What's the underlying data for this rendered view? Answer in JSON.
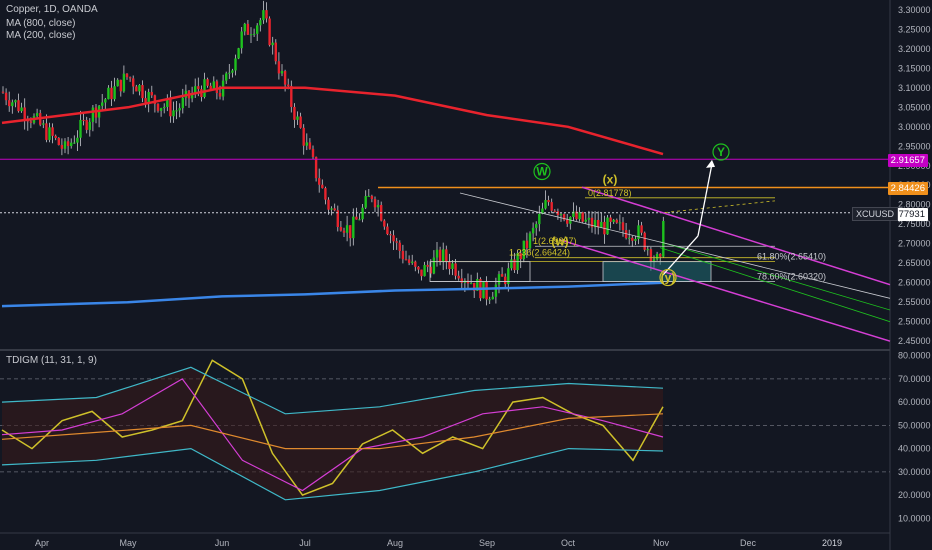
{
  "chart_data": [
    {
      "type": "candlestick",
      "title": "Copper, 1D, OANDA",
      "symbol": "XCUUSD",
      "last_price": "2.77931",
      "price_axis": {
        "ticks": [
          "3.30000",
          "3.25000",
          "3.20000",
          "3.15000",
          "3.10000",
          "3.05000",
          "3.00000",
          "2.95000",
          "2.90000",
          "2.85000",
          "2.80000",
          "2.75000",
          "2.70000",
          "2.65000",
          "2.60000",
          "2.55000",
          "2.50000",
          "2.45000"
        ],
        "ylim": [
          2.43,
          3.32
        ]
      },
      "time_axis": {
        "ticks": [
          "Apr",
          "May",
          "Jun",
          "Jul",
          "Aug",
          "Sep",
          "Oct",
          "Nov",
          "Dec",
          "2019"
        ]
      },
      "moving_averages": [
        {
          "label": "MA (800, close)",
          "color": "#3a86e8",
          "points": [
            [
              "Apr",
              2.54
            ],
            [
              "May",
              2.55
            ],
            [
              "Jun",
              2.565
            ],
            [
              "Jul",
              2.57
            ],
            [
              "Aug",
              2.58
            ],
            [
              "Sep",
              2.585
            ],
            [
              "Oct",
              2.59
            ],
            [
              "Nov",
              2.6
            ]
          ]
        },
        {
          "label": "MA (200, close)",
          "color": "#e8232d",
          "points": [
            [
              "Apr",
              3.01
            ],
            [
              "May",
              3.05
            ],
            [
              "Jun",
              3.1
            ],
            [
              "Jul",
              3.1
            ],
            [
              "Aug",
              3.08
            ],
            [
              "Sep",
              3.03
            ],
            [
              "Oct",
              3.0
            ],
            [
              "Nov",
              2.93
            ]
          ]
        }
      ],
      "price_series": [
        [
          "Apr",
          3.09
        ],
        [
          "Apr",
          3.02
        ],
        [
          "Apr",
          2.94
        ],
        [
          "Apr",
          3.05
        ],
        [
          "May",
          3.13
        ],
        [
          "May",
          3.07
        ],
        [
          "May",
          3.04
        ],
        [
          "May",
          3.1
        ],
        [
          "Jun",
          3.09
        ],
        [
          "Jun",
          3.24
        ],
        [
          "Jun",
          3.28
        ],
        [
          "Jun",
          3.11
        ],
        [
          "Jul",
          2.96
        ],
        [
          "Jul",
          2.8
        ],
        [
          "Jul",
          2.73
        ],
        [
          "Jul",
          2.83
        ],
        [
          "Aug",
          2.7
        ],
        [
          "Aug",
          2.62
        ],
        [
          "Aug",
          2.67
        ],
        [
          "Aug",
          2.62
        ],
        [
          "Sep",
          2.57
        ],
        [
          "Sep",
          2.62
        ],
        [
          "Sep",
          2.7
        ],
        [
          "Sep",
          2.81
        ],
        [
          "Oct",
          2.77
        ],
        [
          "Oct",
          2.75
        ],
        [
          "Oct",
          2.74
        ],
        [
          "Oct",
          2.73
        ],
        [
          "Nov",
          2.64
        ],
        [
          "Nov",
          2.78
        ]
      ],
      "price_tags": [
        {
          "text": "2.91657",
          "color": "#c300c3"
        },
        {
          "text": "2.84426",
          "color": "#f0901c"
        },
        {
          "text": "2.77931",
          "color": "#ffffff"
        }
      ],
      "annotations": {
        "wave_labels": [
          "W",
          "(x)",
          "(w)",
          "(y)",
          "Y"
        ],
        "fib_levels": [
          "0(2.81778)",
          "1(2.69357)",
          "1.236(2.66424)",
          "61.80%(2.65410)",
          "78.60%(2.60320)"
        ]
      },
      "colors": {
        "up": "#1ec11e",
        "down": "#e8232d",
        "background": "#131722"
      }
    },
    {
      "type": "line",
      "title": "TDIGM (11, 31, 1, 9)",
      "y_axis": {
        "ticks": [
          "80.0000",
          "70.0000",
          "60.0000",
          "50.0000",
          "40.0000",
          "30.0000",
          "20.0000",
          "10.0000"
        ],
        "ylim": [
          5,
          82
        ]
      },
      "levels": [
        70,
        50,
        30
      ],
      "series": [
        {
          "color": "#cfc12a",
          "points": [
            [
              "Apr",
              48
            ],
            [
              "Apr",
              40
            ],
            [
              "Apr",
              52
            ],
            [
              "May",
              56
            ],
            [
              "May",
              45
            ],
            [
              "May",
              48
            ],
            [
              "Jun",
              52
            ],
            [
              "Jun",
              78
            ],
            [
              "Jun",
              70
            ],
            [
              "Jul",
              38
            ],
            [
              "Jul",
              20
            ],
            [
              "Jul",
              25
            ],
            [
              "Aug",
              42
            ],
            [
              "Aug",
              48
            ],
            [
              "Aug",
              38
            ],
            [
              "Sep",
              45
            ],
            [
              "Sep",
              40
            ],
            [
              "Sep",
              60
            ],
            [
              "Oct",
              62
            ],
            [
              "Oct",
              55
            ],
            [
              "Oct",
              50
            ],
            [
              "Nov",
              35
            ],
            [
              "Nov",
              58
            ]
          ]
        },
        {
          "color": "#d43ed4",
          "points": [
            [
              "Apr",
              46
            ],
            [
              "May",
              48
            ],
            [
              "Jun",
              55
            ],
            [
              "Jun",
              70
            ],
            [
              "Jul",
              35
            ],
            [
              "Jul",
              22
            ],
            [
              "Aug",
              40
            ],
            [
              "Sep",
              45
            ],
            [
              "Sep",
              55
            ],
            [
              "Oct",
              58
            ],
            [
              "Oct",
              52
            ],
            [
              "Nov",
              45
            ]
          ]
        },
        {
          "color": "#e08a2e",
          "points": [
            [
              "Apr",
              44
            ],
            [
              "May",
              47
            ],
            [
              "Jun",
              50
            ],
            [
              "Jul",
              40
            ],
            [
              "Aug",
              40
            ],
            [
              "Sep",
              45
            ],
            [
              "Oct",
              53
            ],
            [
              "Nov",
              55
            ]
          ]
        },
        {
          "color": "#3fb8c8",
          "points": [
            [
              "Apr",
              60
            ],
            [
              "May",
              62
            ],
            [
              "Jun",
              75
            ],
            [
              "Jul",
              55
            ],
            [
              "Aug",
              58
            ],
            [
              "Sep",
              65
            ],
            [
              "Oct",
              68
            ],
            [
              "Nov",
              66
            ]
          ]
        },
        {
          "color": "#3fb8c8",
          "points": [
            [
              "Apr",
              33
            ],
            [
              "May",
              35
            ],
            [
              "Jun",
              40
            ],
            [
              "Jul",
              18
            ],
            [
              "Aug",
              22
            ],
            [
              "Sep",
              30
            ],
            [
              "Oct",
              40
            ],
            [
              "Nov",
              39
            ]
          ]
        }
      ]
    }
  ]
}
